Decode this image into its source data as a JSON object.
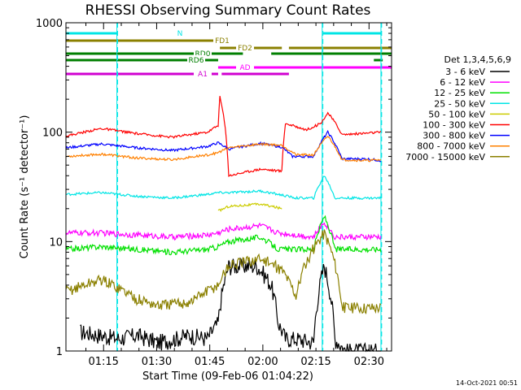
{
  "chart_data": {
    "type": "line",
    "title": "RHESSI Observing Summary Count Rates",
    "xlabel": "Start Time (09-Feb-06 01:04:22)",
    "ylabel": "Count Rate (s⁻¹ detector⁻¹)",
    "yscale": "log",
    "ylim": [
      1,
      1000
    ],
    "xlim_minutes": [
      0,
      92
    ],
    "x_ticks": [
      "01:15",
      "01:30",
      "01:45",
      "02:00",
      "02:15",
      "02:30"
    ],
    "y_ticks": [
      "1",
      "10",
      "100",
      "1000"
    ],
    "legend_title": "Det 1,3,4,5,6,9",
    "legend_position": "right",
    "footer": "14-Oct-2021 00:51",
    "flags": [
      {
        "name": "N",
        "color": "#00e5e5",
        "segments": [
          [
            0,
            14.5
          ],
          [
            72.5,
            89
          ]
        ]
      },
      {
        "name": "FD1",
        "color": "#8b8000",
        "segments": [
          [
            0,
            42.5
          ]
        ]
      },
      {
        "name": "FD2",
        "color": "#8b8000",
        "segments": [
          [
            43.5,
            61
          ],
          [
            63,
            92
          ]
        ]
      },
      {
        "name": "RD0",
        "color": "#007f00",
        "segments": [
          [
            0,
            50
          ],
          [
            58,
            92
          ]
        ]
      },
      {
        "name": "RD6",
        "color": "#007f00",
        "segments": [
          [
            0,
            43
          ],
          [
            87,
            89.5
          ]
        ]
      },
      {
        "name": "AD",
        "color": "#ff00ff",
        "segments": [
          [
            43,
            92
          ]
        ]
      },
      {
        "name": "A1",
        "color": "#d000d0",
        "segments": [
          [
            0,
            43
          ],
          [
            44,
            63
          ]
        ]
      }
    ],
    "gaps_minutes": [
      [
        14.4,
        14.6
      ],
      [
        72.4,
        72.6
      ],
      [
        89,
        89.2
      ]
    ],
    "series": [
      {
        "name": "3 - 6 keV",
        "color": "#000000",
        "x": [
          4,
          15,
          20,
          26,
          31,
          35,
          40,
          43,
          46,
          50,
          54,
          58,
          60,
          62,
          65,
          70,
          73,
          76,
          79,
          82,
          86,
          89
        ],
        "y": [
          1.5,
          1.3,
          1.4,
          1.2,
          1.3,
          1.4,
          1.3,
          1.8,
          6,
          6,
          6,
          4,
          1.8,
          1.3,
          1.3,
          1.2,
          6,
          1.3,
          1,
          1,
          1,
          1
        ]
      },
      {
        "name": "6 - 12 keV",
        "color": "#ff00ff",
        "x": [
          0,
          10,
          20,
          30,
          40,
          43,
          46,
          55,
          60,
          65,
          70,
          73,
          76,
          80,
          85,
          89
        ],
        "y": [
          12,
          12,
          11.5,
          11,
          11.5,
          12,
          13,
          14,
          12,
          11.5,
          11,
          15,
          11,
          11,
          11,
          11
        ]
      },
      {
        "name": "12 - 25 keV",
        "color": "#00e000",
        "x": [
          0,
          10,
          20,
          30,
          40,
          43,
          46,
          55,
          60,
          65,
          70,
          73,
          76,
          80,
          85,
          89
        ],
        "y": [
          8.5,
          9,
          8.5,
          8,
          8.5,
          9,
          10,
          11,
          8.5,
          8.5,
          8.5,
          17,
          8.5,
          8.5,
          8.5,
          8.5
        ]
      },
      {
        "name": "25 - 50 keV",
        "color": "#00e5e5",
        "x": [
          0,
          10,
          20,
          30,
          40,
          43,
          46,
          55,
          60,
          65,
          70,
          73,
          76,
          80,
          85,
          89
        ],
        "y": [
          27,
          28,
          26,
          25,
          27,
          28,
          28,
          29,
          27,
          25,
          25,
          40,
          25,
          25,
          25,
          25
        ]
      },
      {
        "name": "50 - 100 keV",
        "color": "#cccc00",
        "x": [
          43,
          46,
          55,
          61
        ],
        "y": [
          19,
          21,
          22,
          20
        ]
      },
      {
        "name": "100 - 300 keV",
        "color": "#ff0000",
        "x": [
          0,
          10,
          20,
          30,
          40,
          43,
          43.5,
          46,
          55,
          61,
          62,
          68,
          72,
          74,
          78,
          85,
          89
        ],
        "y": [
          92,
          108,
          97,
          90,
          100,
          115,
          210,
          40,
          46,
          44,
          120,
          105,
          120,
          150,
          95,
          98,
          100
        ]
      },
      {
        "name": "300 - 800 keV",
        "color": "#0000ff",
        "x": [
          0,
          10,
          20,
          30,
          40,
          43,
          46,
          55,
          61,
          64,
          70,
          74,
          78,
          85,
          89
        ],
        "y": [
          72,
          78,
          72,
          68,
          74,
          80,
          70,
          79,
          73,
          60,
          60,
          100,
          57,
          57,
          55
        ]
      },
      {
        "name": "800 - 7000 keV",
        "color": "#ff8000",
        "x": [
          0,
          10,
          20,
          30,
          40,
          43,
          46,
          55,
          61,
          65,
          70,
          74,
          78,
          85,
          89
        ],
        "y": [
          60,
          63,
          58,
          56,
          62,
          65,
          72,
          78,
          76,
          62,
          62,
          92,
          56,
          55,
          56
        ]
      },
      {
        "name": "7000 - 15000 keV",
        "color": "#8b8000",
        "x": [
          0,
          10,
          20,
          26,
          35,
          43,
          46,
          55,
          61,
          65,
          73,
          78,
          89
        ],
        "y": [
          3.5,
          4.5,
          3,
          2.6,
          2.8,
          4,
          6,
          7,
          5.5,
          3.2,
          12,
          2.5,
          2.5
        ]
      }
    ]
  }
}
